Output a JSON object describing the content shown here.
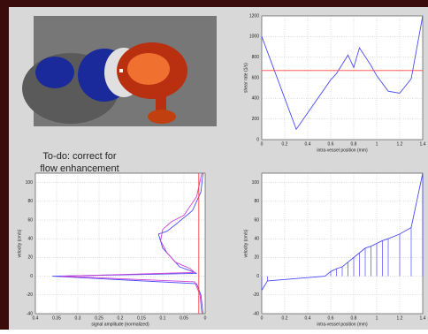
{
  "annotation": [
    "To-do: correct for",
    "flow enhancement"
  ],
  "chart_data": [
    {
      "type": "line",
      "xlabel": "intra-vessel position (mm)",
      "ylabel": "shear rate (1/s)",
      "xlim": [
        0,
        1.4
      ],
      "xticks": [
        0,
        0.2,
        0.4,
        0.6,
        0.8,
        1,
        1.2,
        1.4
      ],
      "ylim": [
        0,
        1200
      ],
      "yticks": [
        0,
        200,
        400,
        600,
        800,
        1000,
        1200
      ],
      "grid": true,
      "series": [
        {
          "color": "#4a4aff",
          "x": [
            0,
            0.3,
            0.6,
            0.65,
            0.75,
            0.8,
            0.85,
            0.95,
            1.0,
            1.1,
            1.2,
            1.3,
            1.4
          ],
          "values": [
            1000,
            100,
            580,
            640,
            820,
            700,
            890,
            720,
            620,
            470,
            450,
            590,
            1200
          ]
        },
        {
          "color": "#ff4040",
          "x": [
            0,
            1.4
          ],
          "values": [
            670,
            670
          ]
        }
      ]
    },
    {
      "type": "line",
      "xlabel": "signal amplitude (normalized)",
      "ylabel": "velocity (cm/s)",
      "xlim": [
        0.4,
        0
      ],
      "xticks": [
        0.4,
        0.35,
        0.3,
        0.25,
        0.2,
        0.15,
        0.1,
        0.05,
        0
      ],
      "ylim": [
        -40,
        110
      ],
      "yticks": [
        -40,
        -20,
        0,
        20,
        40,
        60,
        80,
        100
      ],
      "grid": true,
      "series": [
        {
          "color": "#4a4aff",
          "x": [
            0.005,
            0.01,
            0.02,
            0.36,
            0.02,
            0.03,
            0.06,
            0.08,
            0.1,
            0.11,
            0.09,
            0.07,
            0.03,
            0.01,
            0.005
          ],
          "values": [
            -40,
            -20,
            -8,
            0,
            3,
            5,
            10,
            20,
            30,
            45,
            48,
            55,
            70,
            90,
            110
          ]
        },
        {
          "color": "#d040d0",
          "x": [
            0.008,
            0.012,
            0.025,
            0.34,
            0.025,
            0.035,
            0.07,
            0.09,
            0.105,
            0.1,
            0.08,
            0.05,
            0.02,
            0.008
          ],
          "values": [
            -40,
            -20,
            -6,
            0,
            4,
            8,
            15,
            25,
            38,
            50,
            58,
            65,
            85,
            110
          ]
        },
        {
          "color": "#ff4040",
          "x": [
            0.015,
            0.015
          ],
          "values": [
            -40,
            110
          ]
        }
      ]
    },
    {
      "type": "stem",
      "xlabel": "intra-vessel position (mm)",
      "ylabel": "velocity (cm/s)",
      "xlim": [
        0,
        1.4
      ],
      "xticks": [
        0,
        0.2,
        0.4,
        0.6,
        0.8,
        1,
        1.2,
        1.4
      ],
      "ylim": [
        -40,
        110
      ],
      "yticks": [
        -40,
        -20,
        0,
        20,
        40,
        60,
        80,
        100
      ],
      "grid": true,
      "series": [
        {
          "color": "#4a4aff",
          "x": [
            0,
            0.05,
            0.55,
            0.6,
            0.65,
            0.7,
            0.75,
            0.8,
            0.85,
            0.9,
            0.95,
            1.0,
            1.05,
            1.1,
            1.2,
            1.3,
            1.4
          ],
          "values": [
            -15,
            -5,
            0,
            5,
            8,
            10,
            15,
            20,
            25,
            30,
            32,
            35,
            38,
            40,
            45,
            52,
            110
          ]
        }
      ]
    }
  ]
}
